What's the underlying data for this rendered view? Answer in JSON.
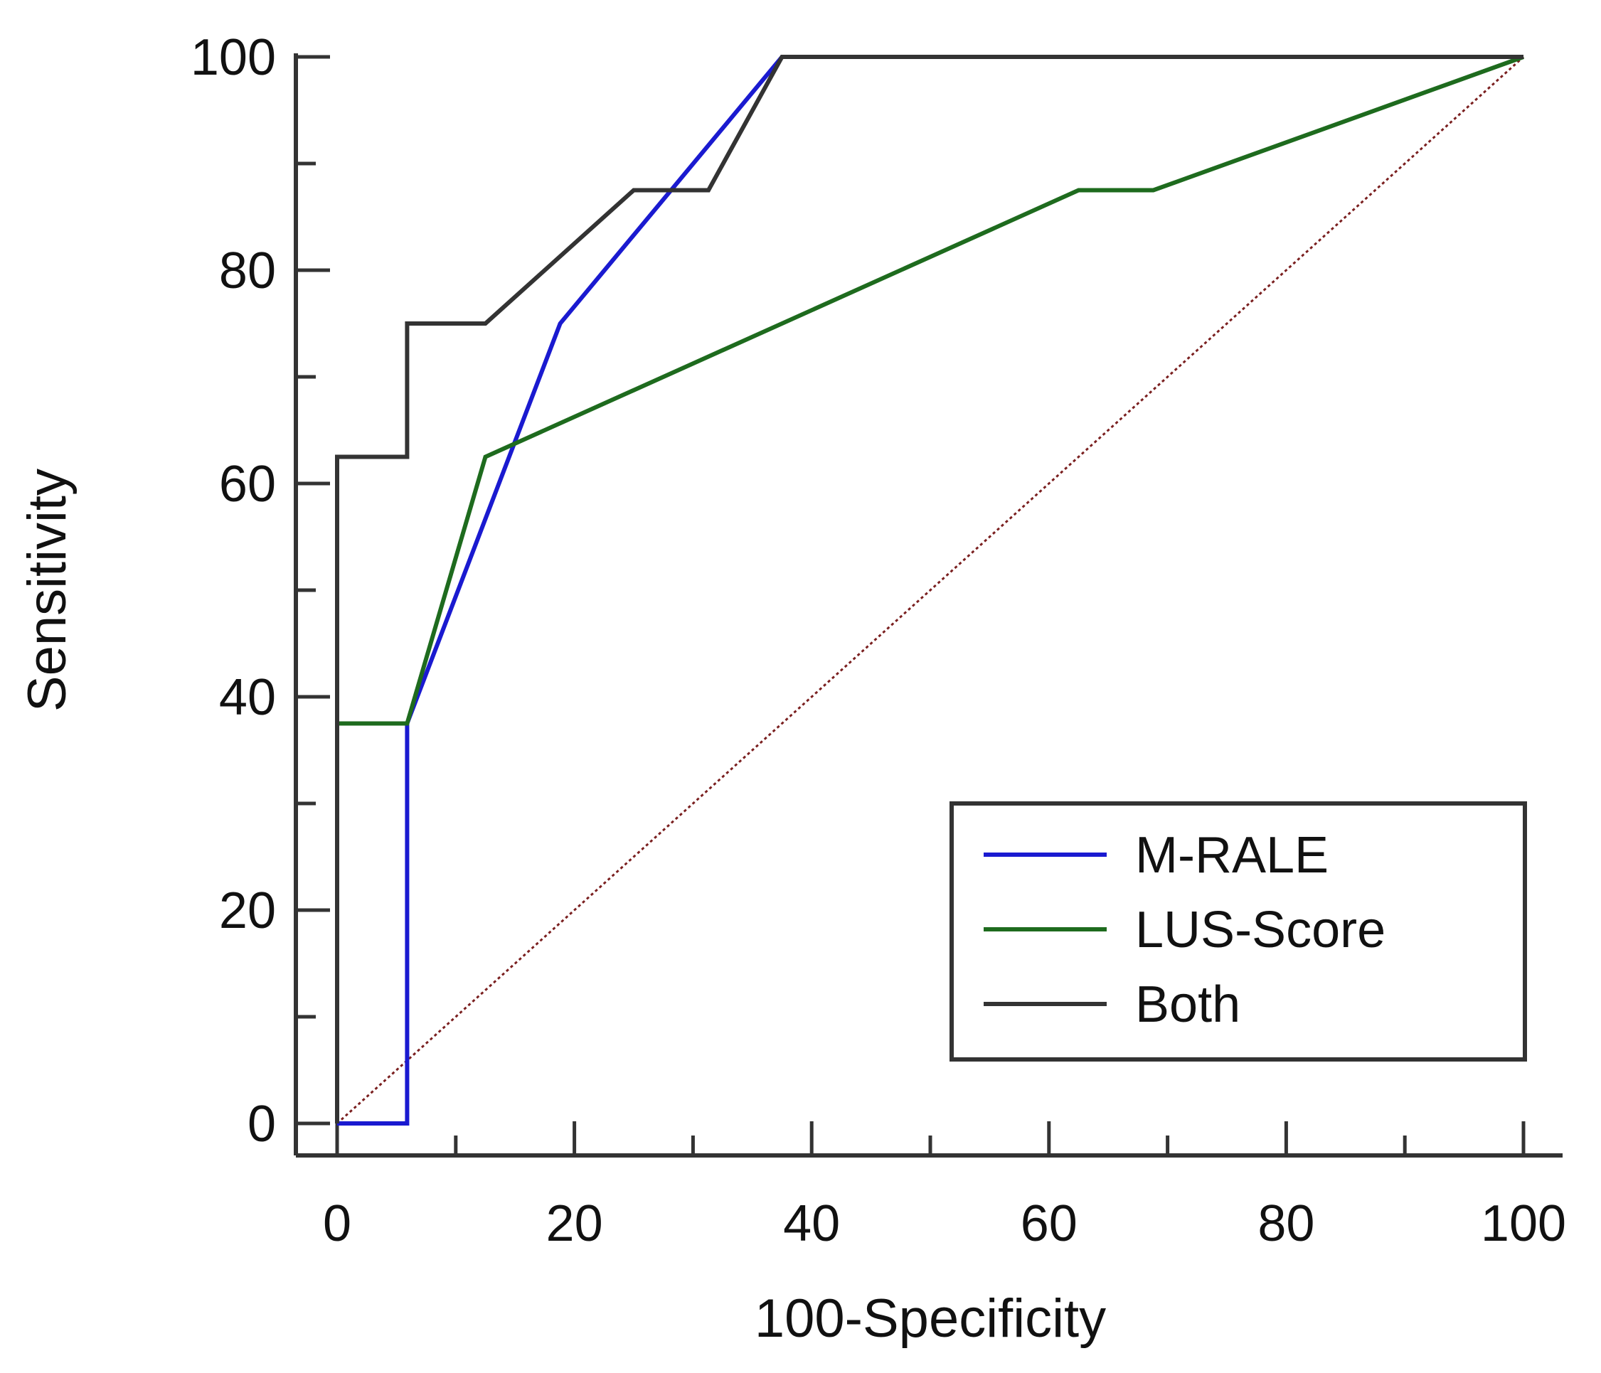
{
  "chart_data": {
    "type": "line",
    "title": "",
    "xlabel": "100-Specificity",
    "ylabel": "Sensitivity",
    "xlim": [
      0,
      100
    ],
    "ylim": [
      0,
      100
    ],
    "x_ticks": [
      0,
      20,
      40,
      60,
      80,
      100
    ],
    "y_ticks": [
      0,
      20,
      40,
      60,
      80,
      100
    ],
    "x_tick_labels": [
      "0",
      "20",
      "40",
      "60",
      "80",
      "100"
    ],
    "y_tick_labels": [
      "0",
      "20",
      "40",
      "60",
      "80",
      "100"
    ],
    "grid": false,
    "legend_position": "bottom-right",
    "series": [
      {
        "name": "M-RALE",
        "color": "#1a1ad0",
        "x": [
          0,
          5.9,
          5.9,
          18.8,
          37.5,
          100
        ],
        "y": [
          0,
          0,
          37.5,
          75,
          100,
          100
        ]
      },
      {
        "name": "LUS-Score",
        "color": "#1e6b1e",
        "x": [
          0,
          0,
          5.9,
          12.5,
          62.5,
          68.8,
          100
        ],
        "y": [
          0,
          37.5,
          37.5,
          62.5,
          87.5,
          87.5,
          100
        ]
      },
      {
        "name": "Both",
        "color": "#333333",
        "x": [
          0,
          0,
          5.9,
          5.9,
          12.5,
          25,
          31.3,
          37.5,
          100
        ],
        "y": [
          0,
          62.5,
          62.5,
          75,
          75,
          87.5,
          87.5,
          100,
          100
        ]
      }
    ],
    "reference_line": {
      "name": "reference",
      "color": "#7a1f1f",
      "x": [
        0,
        100
      ],
      "y": [
        0,
        100
      ]
    }
  }
}
